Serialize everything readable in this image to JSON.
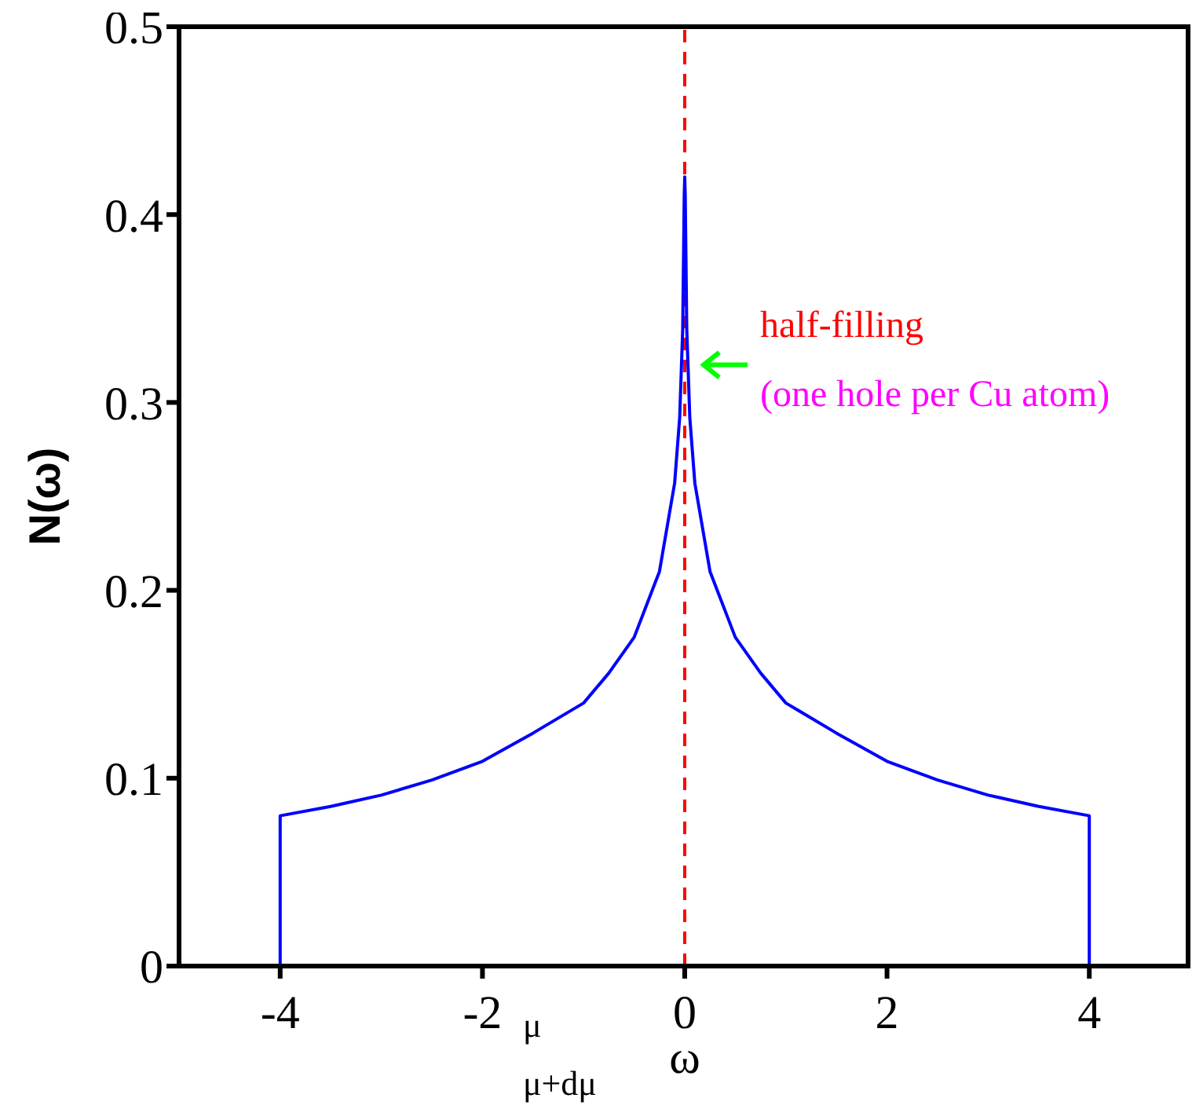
{
  "chart_data": {
    "type": "line",
    "xlabel": "ω",
    "ylabel": "N(ω)",
    "x": [
      -4,
      -4,
      -3.5,
      -3,
      -2.5,
      -2,
      -1.5,
      -1,
      -0.75,
      -0.5,
      -0.25,
      -0.1,
      -0.05,
      -0.02,
      -0.005,
      0,
      0.005,
      0.02,
      0.05,
      0.1,
      0.25,
      0.5,
      0.75,
      1,
      1.5,
      2,
      2.5,
      3,
      3.5,
      4,
      4
    ],
    "series": [
      {
        "color": "#0000ff",
        "values": [
          0,
          0.08,
          0.085,
          0.091,
          0.099,
          0.109,
          0.124,
          0.14,
          0.156,
          0.175,
          0.21,
          0.257,
          0.292,
          0.339,
          0.41,
          0.42,
          0.41,
          0.339,
          0.292,
          0.257,
          0.21,
          0.175,
          0.156,
          0.14,
          0.124,
          0.109,
          0.099,
          0.091,
          0.085,
          0.08,
          0
        ]
      }
    ],
    "xlim": [
      -5,
      5
    ],
    "xticks": [
      -4,
      -2,
      0,
      2,
      4
    ],
    "ylim": [
      0,
      0.5
    ],
    "yticks": [
      0,
      0.1,
      0.2,
      0.3,
      0.4,
      0.5
    ],
    "ref_lines": [
      {
        "axis": "x",
        "value": 0,
        "color": "#ff0000",
        "line_style": "dashed"
      }
    ],
    "annotations": [
      {
        "text": "half-filling",
        "x": 0,
        "y": 0.32
      },
      "(one hole per Cu atom)",
      "μ",
      "μ+dμ"
    ],
    "marker": "none",
    "line_style": "solid"
  }
}
